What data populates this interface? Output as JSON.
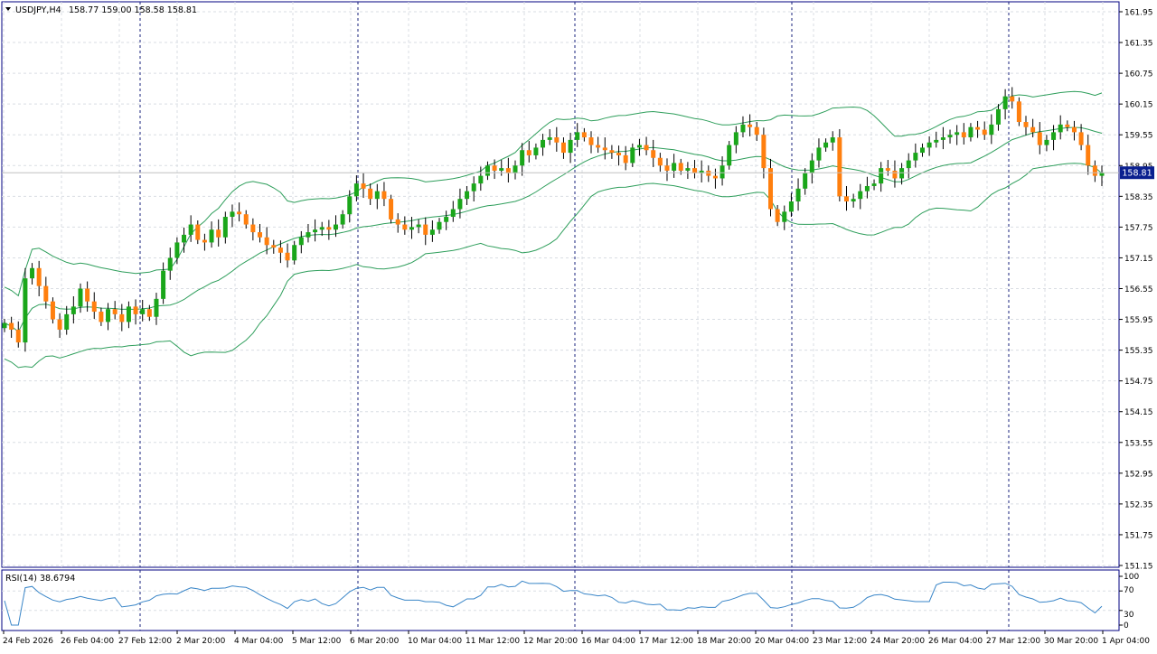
{
  "header": {
    "symbol": "USDJPY,H4",
    "ohlc": "158.77 159.00 158.58 158.81"
  },
  "price_badge": "158.81",
  "rsi": {
    "label": "RSI(14) 38.6794",
    "levels": [
      "100",
      "70",
      "30",
      "0"
    ]
  },
  "colors": {
    "bull": "#1aa61a",
    "bear": "#ff7f0e",
    "band": "#2e9e5b",
    "rsi_line": "#3a86c8",
    "grid": "#d9dde3",
    "separator": "#1a237e",
    "axis": "#000080",
    "badge": "#0a1f8f"
  },
  "chart_data": {
    "type": "candlestick",
    "title": "USDJPY,H4",
    "y_ticks": [
      "161.95",
      "161.35",
      "160.75",
      "160.15",
      "159.55",
      "158.95",
      "158.35",
      "157.75",
      "157.15",
      "156.55",
      "155.95",
      "155.35",
      "154.75",
      "154.15",
      "153.55",
      "152.95",
      "152.35",
      "151.75",
      "151.15"
    ],
    "ylim": [
      151.15,
      161.95
    ],
    "x_labels": [
      "24 Feb 2026",
      "26 Feb 04:00",
      "27 Feb 12:00",
      "2 Mar 20:00",
      "4 Mar 04:00",
      "5 Mar 12:00",
      "6 Mar 20:00",
      "10 Mar 04:00",
      "11 Mar 12:00",
      "12 Mar 20:00",
      "16 Mar 04:00",
      "17 Mar 12:00",
      "18 Mar 20:00",
      "20 Mar 04:00",
      "23 Mar 12:00",
      "24 Mar 20:00",
      "26 Mar 04:00",
      "27 Mar 12:00",
      "30 Mar 20:00",
      "1 Apr 04:00"
    ],
    "grid": true,
    "current_price": 158.81,
    "candle_closes": [
      155.88,
      155.75,
      155.5,
      156.75,
      156.95,
      156.6,
      156.3,
      155.95,
      155.75,
      156.05,
      156.2,
      156.55,
      156.3,
      156.1,
      155.9,
      156.15,
      156.05,
      155.9,
      156.2,
      156.05,
      156.15,
      156.0,
      156.35,
      156.9,
      157.15,
      157.45,
      157.6,
      157.8,
      157.5,
      157.45,
      157.7,
      157.55,
      157.95,
      158.05,
      158.0,
      157.8,
      157.65,
      157.55,
      157.4,
      157.35,
      157.25,
      157.1,
      157.4,
      157.55,
      157.65,
      157.7,
      157.75,
      157.7,
      157.8,
      158.0,
      158.35,
      158.6,
      158.5,
      158.3,
      158.45,
      158.3,
      157.9,
      157.8,
      157.7,
      157.75,
      157.8,
      157.6,
      157.7,
      157.85,
      157.95,
      158.1,
      158.3,
      158.45,
      158.6,
      158.75,
      158.95,
      158.85,
      158.9,
      158.8,
      158.95,
      159.25,
      159.15,
      159.3,
      159.45,
      159.5,
      159.4,
      159.2,
      159.45,
      159.6,
      159.5,
      159.35,
      159.3,
      159.25,
      159.2,
      159.15,
      159.0,
      159.3,
      159.35,
      159.25,
      159.1,
      158.95,
      158.85,
      159.0,
      158.85,
      158.9,
      158.8,
      158.85,
      158.75,
      158.7,
      158.95,
      159.35,
      159.6,
      159.75,
      159.7,
      159.55,
      158.9,
      158.1,
      157.85,
      158.05,
      158.25,
      158.5,
      158.8,
      159.05,
      159.3,
      159.4,
      159.5,
      158.35,
      158.25,
      158.3,
      158.45,
      158.55,
      158.6,
      158.9,
      158.85,
      158.7,
      158.9,
      159.05,
      159.2,
      159.3,
      159.4,
      159.45,
      159.5,
      159.55,
      159.6,
      159.5,
      159.7,
      159.65,
      159.55,
      159.75,
      160.05,
      160.3,
      160.2,
      159.8,
      159.7,
      159.6,
      159.35,
      159.45,
      159.6,
      159.75,
      159.7,
      159.6,
      159.35,
      158.95,
      158.75,
      158.81
    ],
    "bollinger": {
      "period": 20,
      "deviations": 2
    },
    "rsi": {
      "period": 14,
      "value": 38.6794,
      "levels": [
        100,
        70,
        30,
        0
      ],
      "ylim": [
        0,
        100
      ]
    }
  }
}
